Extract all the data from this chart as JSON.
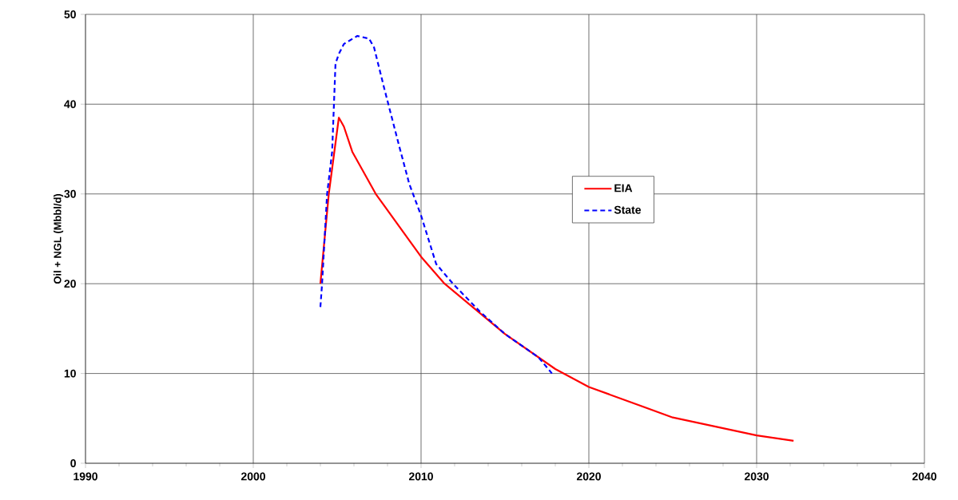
{
  "chart_data": {
    "type": "line",
    "ylabel": "Oil + NGL (Mbbl/d)",
    "xlim": [
      1990,
      2040
    ],
    "xticks": [
      1990,
      2000,
      2010,
      2020,
      2030,
      2040
    ],
    "ylim": [
      0,
      50
    ],
    "yticks": [
      0,
      10,
      20,
      30,
      40,
      50
    ],
    "grid": true,
    "legend": "right",
    "marker": "none",
    "series": [
      {
        "name": "EIA",
        "color": "#ff0000",
        "line_style": "solid",
        "x": [
          2004.0,
          2004.5,
          2005.1,
          2005.4,
          2005.9,
          2007.3,
          2010.0,
          2011.4,
          2015.0,
          2018.0,
          2020.0,
          2025.0,
          2030.0,
          2032.2
        ],
        "values": [
          20.0,
          30.0,
          38.5,
          37.5,
          34.7,
          30.0,
          23.0,
          20.0,
          14.4,
          10.5,
          8.5,
          5.1,
          3.1,
          2.5
        ]
      },
      {
        "name": "State",
        "color": "#0000ff",
        "line_style": "dashed",
        "x": [
          2004.0,
          2004.1,
          2004.4,
          2004.7,
          2004.9,
          2005.1,
          2005.4,
          2006.2,
          2006.9,
          2007.2,
          2007.8,
          2008.7,
          2009.3,
          2010.0,
          2010.9,
          2011.9,
          2013.5,
          2015.0,
          2017.0,
          2017.8
        ],
        "values": [
          17.4,
          20.0,
          30.0,
          34.7,
          44.5,
          45.6,
          46.7,
          47.6,
          47.3,
          46.3,
          41.8,
          35.3,
          31.1,
          27.6,
          22.2,
          20.0,
          16.9,
          14.4,
          11.8,
          10.0
        ]
      }
    ]
  }
}
